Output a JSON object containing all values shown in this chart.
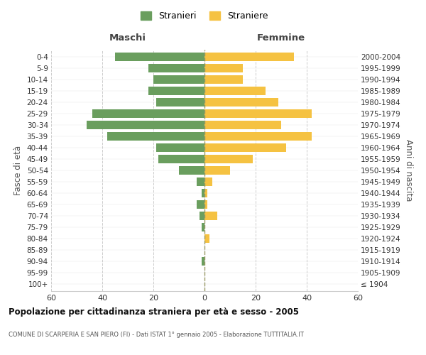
{
  "age_groups": [
    "100+",
    "95-99",
    "90-94",
    "85-89",
    "80-84",
    "75-79",
    "70-74",
    "65-69",
    "60-64",
    "55-59",
    "50-54",
    "45-49",
    "40-44",
    "35-39",
    "30-34",
    "25-29",
    "20-24",
    "15-19",
    "10-14",
    "5-9",
    "0-4"
  ],
  "birth_years": [
    "≤ 1904",
    "1905-1909",
    "1910-1914",
    "1915-1919",
    "1920-1924",
    "1925-1929",
    "1930-1934",
    "1935-1939",
    "1940-1944",
    "1945-1949",
    "1950-1954",
    "1955-1959",
    "1960-1964",
    "1965-1969",
    "1970-1974",
    "1975-1979",
    "1980-1984",
    "1985-1989",
    "1990-1994",
    "1995-1999",
    "2000-2004"
  ],
  "males": [
    0,
    0,
    1,
    0,
    0,
    1,
    2,
    3,
    1,
    3,
    10,
    18,
    19,
    38,
    46,
    44,
    19,
    22,
    20,
    22,
    35
  ],
  "females": [
    0,
    0,
    0,
    0,
    2,
    0,
    5,
    1,
    1,
    3,
    10,
    19,
    32,
    42,
    30,
    42,
    29,
    24,
    15,
    15,
    35
  ],
  "male_color": "#6a9e5e",
  "female_color": "#f5c242",
  "background_color": "#ffffff",
  "grid_color": "#cccccc",
  "title": "Popolazione per cittadinanza straniera per età e sesso - 2005",
  "subtitle": "COMUNE DI SCARPERIA E SAN PIERO (FI) - Dati ISTAT 1° gennaio 2005 - Elaborazione TUTTITALIA.IT",
  "xlabel_left": "Maschi",
  "xlabel_right": "Femmine",
  "ylabel_left": "Fasce di età",
  "ylabel_right": "Anni di nascita",
  "legend_male": "Stranieri",
  "legend_female": "Straniere",
  "xlim": 60
}
